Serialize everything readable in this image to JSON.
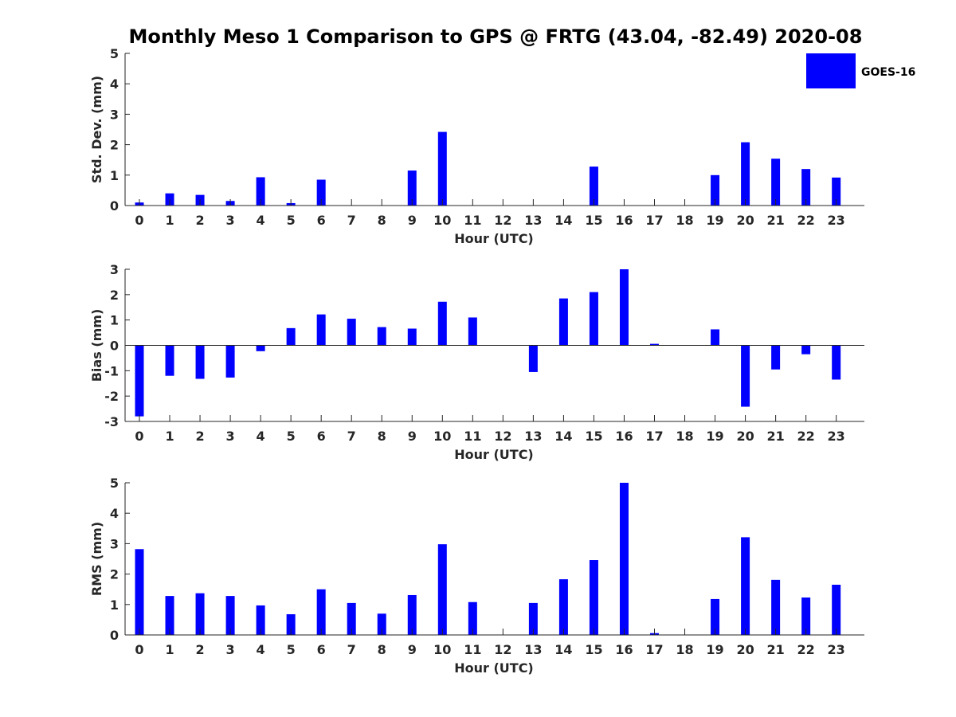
{
  "title": "Monthly Meso 1 Comparison to GPS @ FRTG (43.04, -82.49) 2020-08",
  "legend": {
    "label": "GOES-16",
    "position": "top-right",
    "color": "#0000ff"
  },
  "chart_data": [
    {
      "type": "bar",
      "ylabel": "Std. Dev. (mm)",
      "xlabel": "Hour (UTC)",
      "ylim": [
        0,
        5
      ],
      "yticks": [
        "0",
        "1",
        "2",
        "3",
        "4",
        "5"
      ],
      "categories": [
        "0",
        "1",
        "2",
        "3",
        "4",
        "5",
        "6",
        "7",
        "8",
        "9",
        "10",
        "11",
        "12",
        "13",
        "14",
        "15",
        "16",
        "17",
        "18",
        "19",
        "20",
        "21",
        "22",
        "23"
      ],
      "series": [
        {
          "name": "GOES-16",
          "color": "#0000ff",
          "values": [
            0.1,
            0.4,
            0.35,
            0.15,
            0.93,
            0.08,
            0.85,
            0,
            0,
            1.15,
            2.42,
            0,
            0,
            0,
            0,
            1.28,
            0,
            0,
            0,
            1.0,
            2.08,
            1.54,
            1.2,
            0.92
          ]
        }
      ]
    },
    {
      "type": "bar",
      "ylabel": "Bias (mm)",
      "xlabel": "Hour (UTC)",
      "ylim": [
        -3,
        3
      ],
      "yticks": [
        "-3",
        "-2",
        "-1",
        "0",
        "1",
        "2",
        "3"
      ],
      "categories": [
        "0",
        "1",
        "2",
        "3",
        "4",
        "5",
        "6",
        "7",
        "8",
        "9",
        "10",
        "11",
        "12",
        "13",
        "14",
        "15",
        "16",
        "17",
        "18",
        "19",
        "20",
        "21",
        "22",
        "23"
      ],
      "series": [
        {
          "name": "GOES-16",
          "color": "#0000ff",
          "values": [
            -2.8,
            -1.2,
            -1.32,
            -1.27,
            -0.23,
            0.68,
            1.22,
            1.05,
            0.72,
            0.66,
            1.72,
            1.1,
            0,
            -1.05,
            1.85,
            2.1,
            3.0,
            0.06,
            0,
            0.63,
            -2.42,
            -0.95,
            -0.35,
            -1.35
          ]
        }
      ]
    },
    {
      "type": "bar",
      "ylabel": "RMS (mm)",
      "xlabel": "Hour (UTC)",
      "ylim": [
        0,
        5
      ],
      "yticks": [
        "0",
        "1",
        "2",
        "3",
        "4",
        "5"
      ],
      "categories": [
        "0",
        "1",
        "2",
        "3",
        "4",
        "5",
        "6",
        "7",
        "8",
        "9",
        "10",
        "11",
        "12",
        "13",
        "14",
        "15",
        "16",
        "17",
        "18",
        "19",
        "20",
        "21",
        "22",
        "23"
      ],
      "series": [
        {
          "name": "GOES-16",
          "color": "#0000ff",
          "values": [
            2.82,
            1.28,
            1.37,
            1.28,
            0.97,
            0.68,
            1.5,
            1.05,
            0.7,
            1.31,
            2.98,
            1.08,
            0,
            1.05,
            1.83,
            2.46,
            5.0,
            0.06,
            0,
            1.18,
            3.21,
            1.81,
            1.23,
            1.65
          ]
        }
      ]
    }
  ]
}
